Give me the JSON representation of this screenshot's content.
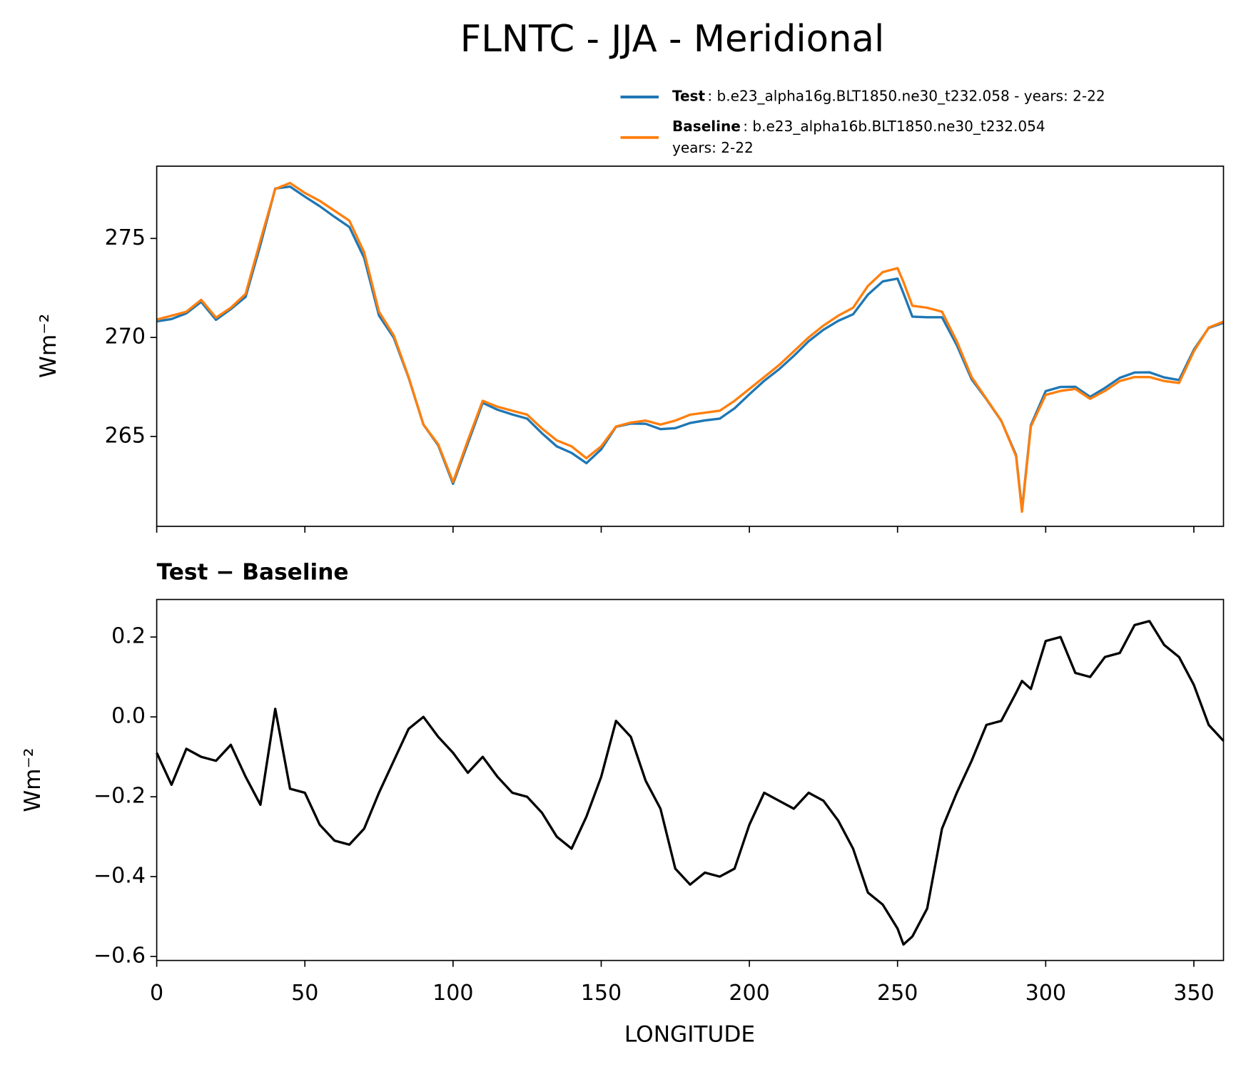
{
  "chart_data": [
    {
      "type": "line",
      "title": "FLNTC - JJA - Meridional",
      "ylabel": "Wm⁻²",
      "x": [
        0,
        5,
        10,
        15,
        20,
        25,
        30,
        35,
        40,
        45,
        50,
        55,
        60,
        65,
        70,
        75,
        80,
        85,
        90,
        95,
        100,
        105,
        110,
        115,
        120,
        125,
        130,
        135,
        140,
        145,
        150,
        155,
        160,
        165,
        170,
        175,
        180,
        185,
        190,
        195,
        200,
        205,
        210,
        215,
        220,
        225,
        230,
        235,
        240,
        245,
        250,
        252,
        255,
        260,
        265,
        270,
        275,
        280,
        285,
        290,
        292,
        295,
        300,
        305,
        310,
        315,
        320,
        325,
        330,
        335,
        340,
        345,
        350,
        355,
        360
      ],
      "series": [
        {
          "name": "Test",
          "color": "#1f77b4",
          "desc": [
            ": b.e23_alpha16g.BLT1850.ne30_t232.058 - years: 2-22"
          ],
          "values": [
            270.81,
            270.93,
            271.22,
            271.8,
            270.89,
            271.43,
            272.05,
            274.68,
            277.52,
            277.62,
            277.11,
            276.63,
            276.09,
            275.58,
            274.02,
            271.11,
            269.99,
            267.97,
            265.6,
            264.55,
            262.61,
            264.66,
            266.7,
            266.35,
            266.11,
            265.9,
            265.16,
            264.5,
            264.17,
            263.65,
            264.35,
            265.49,
            265.65,
            265.64,
            265.37,
            265.42,
            265.68,
            265.81,
            265.9,
            266.42,
            267.13,
            267.81,
            268.39,
            269.07,
            269.81,
            270.39,
            270.84,
            271.17,
            272.16,
            272.83,
            272.97,
            272.23,
            271.05,
            271.02,
            271.02,
            269.61,
            267.89,
            266.88,
            265.79,
            264.06,
            261.29,
            265.57,
            267.29,
            267.5,
            267.51,
            267.0,
            267.45,
            267.96,
            268.23,
            268.24,
            267.98,
            267.85,
            269.38,
            270.48,
            270.74
          ]
        },
        {
          "name": "Baseline",
          "color": "#ff7f0e",
          "desc": [
            ": b.e23_alpha16b.BLT1850.ne30_t232.054",
            "years: 2-22"
          ],
          "values": [
            270.9,
            271.1,
            271.3,
            271.9,
            271.0,
            271.5,
            272.2,
            274.9,
            277.5,
            277.8,
            277.3,
            276.9,
            276.4,
            275.9,
            274.3,
            271.3,
            270.1,
            268.0,
            265.6,
            264.6,
            262.7,
            264.8,
            266.8,
            266.5,
            266.3,
            266.1,
            265.4,
            264.8,
            264.5,
            263.9,
            264.5,
            265.5,
            265.7,
            265.8,
            265.6,
            265.8,
            266.1,
            266.2,
            266.3,
            266.8,
            267.4,
            268.0,
            268.6,
            269.3,
            270.0,
            270.6,
            271.1,
            271.5,
            272.6,
            273.3,
            273.5,
            272.8,
            271.6,
            271.5,
            271.3,
            269.8,
            268.0,
            266.9,
            265.8,
            264.0,
            261.2,
            265.5,
            267.1,
            267.3,
            267.4,
            266.9,
            267.3,
            267.8,
            268.0,
            268.0,
            267.8,
            267.7,
            269.3,
            270.5,
            270.8
          ]
        }
      ],
      "xlim": [
        0,
        360
      ],
      "xticks": [
        0,
        50,
        100,
        150,
        200,
        250,
        300,
        350
      ],
      "ylim": [
        260.46,
        278.65
      ],
      "yticks": [
        265,
        270,
        275
      ]
    },
    {
      "type": "line",
      "subtitle": "Test − Baseline",
      "ylabel": "Wm⁻²",
      "xlabel": "LONGITUDE",
      "x": [
        0,
        5,
        10,
        15,
        20,
        25,
        30,
        35,
        40,
        45,
        50,
        55,
        60,
        65,
        70,
        75,
        80,
        85,
        90,
        95,
        100,
        105,
        110,
        115,
        120,
        125,
        130,
        135,
        140,
        145,
        150,
        155,
        160,
        165,
        170,
        175,
        180,
        185,
        190,
        195,
        200,
        205,
        210,
        215,
        220,
        225,
        230,
        235,
        240,
        245,
        250,
        252,
        255,
        260,
        265,
        270,
        275,
        280,
        285,
        290,
        292,
        295,
        300,
        305,
        310,
        315,
        320,
        325,
        330,
        335,
        340,
        345,
        350,
        355,
        360
      ],
      "series": [
        {
          "color": "#000000",
          "values": [
            -0.09,
            -0.17,
            -0.08,
            -0.1,
            -0.11,
            -0.07,
            -0.15,
            -0.22,
            0.02,
            -0.18,
            -0.19,
            -0.27,
            -0.31,
            -0.32,
            -0.28,
            -0.19,
            -0.11,
            -0.03,
            0.0,
            -0.05,
            -0.09,
            -0.14,
            -0.1,
            -0.15,
            -0.19,
            -0.2,
            -0.24,
            -0.3,
            -0.33,
            -0.25,
            -0.15,
            -0.01,
            -0.05,
            -0.16,
            -0.23,
            -0.38,
            -0.42,
            -0.39,
            -0.4,
            -0.38,
            -0.27,
            -0.19,
            -0.21,
            -0.23,
            -0.19,
            -0.21,
            -0.26,
            -0.33,
            -0.44,
            -0.47,
            -0.53,
            -0.57,
            -0.55,
            -0.48,
            -0.28,
            -0.19,
            -0.11,
            -0.02,
            -0.01,
            0.06,
            0.09,
            0.07,
            0.19,
            0.2,
            0.11,
            0.1,
            0.15,
            0.16,
            0.23,
            0.24,
            0.18,
            0.15,
            0.08,
            -0.02,
            -0.06
          ]
        }
      ],
      "xlim": [
        0,
        360
      ],
      "xticks": [
        0,
        50,
        100,
        150,
        200,
        250,
        300,
        350
      ],
      "ylim": [
        -0.61,
        0.294
      ],
      "yticks": [
        {
          "value": -0.6,
          "label": "−0.6"
        },
        {
          "value": -0.4,
          "label": "−0.4"
        },
        {
          "value": -0.2,
          "label": "−0.2"
        },
        {
          "value": 0,
          "label": "0.0"
        },
        0.2
      ]
    }
  ]
}
